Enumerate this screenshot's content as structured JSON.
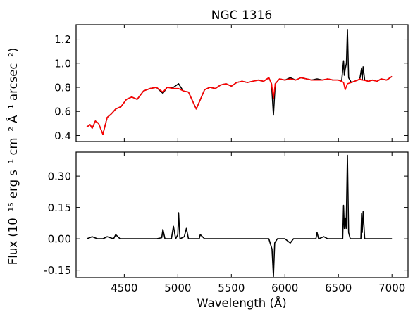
{
  "chart_data": [
    {
      "type": "line",
      "panel": "top",
      "title": "NGC 1316",
      "xlim": [
        4050,
        7150
      ],
      "ylim": [
        0.35,
        1.32
      ],
      "xticks": [
        4500,
        5000,
        5500,
        6000,
        6500,
        7000
      ],
      "yticks": [
        0.4,
        0.6,
        0.8,
        1.0,
        1.2
      ],
      "ytick_labels": [
        "0.4",
        "0.6",
        "0.8",
        "1.0",
        "1.2"
      ],
      "series": [
        {
          "color": "#000000",
          "role": "observed",
          "x": [
            4150,
            4180,
            4200,
            4230,
            4260,
            4300,
            4340,
            4380,
            4420,
            4470,
            4520,
            4570,
            4620,
            4680,
            4740,
            4800,
            4861,
            4900,
            4959,
            5007,
            5050,
            5100,
            5172,
            5250,
            5300,
            5350,
            5400,
            5450,
            5500,
            5550,
            5600,
            5650,
            5700,
            5750,
            5800,
            5850,
            5875,
            5893,
            5910,
            5950,
            6000,
            6050,
            6100,
            6150,
            6200,
            6250,
            6300,
            6350,
            6400,
            6450,
            6500,
            6530,
            6548,
            6555,
            6563,
            6575,
            6584,
            6595,
            6620,
            6650,
            6680,
            6700,
            6716,
            6722,
            6731,
            6745,
            6780,
            6820,
            6860,
            6900,
            6950,
            7000
          ],
          "y": [
            0.47,
            0.49,
            0.46,
            0.52,
            0.5,
            0.41,
            0.55,
            0.58,
            0.62,
            0.64,
            0.7,
            0.72,
            0.7,
            0.77,
            0.79,
            0.8,
            0.75,
            0.8,
            0.8,
            0.83,
            0.77,
            0.76,
            0.62,
            0.78,
            0.8,
            0.79,
            0.82,
            0.83,
            0.81,
            0.84,
            0.85,
            0.84,
            0.85,
            0.86,
            0.85,
            0.88,
            0.83,
            0.57,
            0.83,
            0.87,
            0.86,
            0.88,
            0.86,
            0.88,
            0.87,
            0.86,
            0.87,
            0.86,
            0.87,
            0.86,
            0.86,
            0.85,
            1.02,
            0.9,
            0.95,
            1.0,
            1.28,
            0.88,
            0.84,
            0.85,
            0.86,
            0.87,
            0.96,
            0.86,
            0.97,
            0.86,
            0.85,
            0.86,
            0.85,
            0.87,
            0.86,
            0.89
          ]
        },
        {
          "color": "#ff0000",
          "role": "model",
          "x": [
            4150,
            4180,
            4200,
            4230,
            4260,
            4300,
            4340,
            4380,
            4420,
            4470,
            4520,
            4570,
            4620,
            4680,
            4740,
            4800,
            4861,
            4900,
            4959,
            5007,
            5050,
            5100,
            5172,
            5250,
            5300,
            5350,
            5400,
            5450,
            5500,
            5550,
            5600,
            5650,
            5700,
            5750,
            5800,
            5850,
            5875,
            5893,
            5910,
            5950,
            6000,
            6050,
            6100,
            6150,
            6200,
            6250,
            6300,
            6350,
            6400,
            6450,
            6500,
            6530,
            6548,
            6563,
            6584,
            6620,
            6650,
            6680,
            6700,
            6716,
            6731,
            6780,
            6820,
            6860,
            6900,
            6950,
            7000
          ],
          "y": [
            0.47,
            0.49,
            0.46,
            0.52,
            0.5,
            0.41,
            0.55,
            0.58,
            0.62,
            0.64,
            0.7,
            0.72,
            0.7,
            0.77,
            0.79,
            0.8,
            0.76,
            0.8,
            0.79,
            0.79,
            0.77,
            0.76,
            0.62,
            0.78,
            0.8,
            0.79,
            0.82,
            0.83,
            0.81,
            0.84,
            0.85,
            0.84,
            0.85,
            0.86,
            0.85,
            0.88,
            0.83,
            0.71,
            0.83,
            0.87,
            0.86,
            0.87,
            0.86,
            0.88,
            0.87,
            0.86,
            0.86,
            0.86,
            0.87,
            0.86,
            0.86,
            0.85,
            0.84,
            0.78,
            0.83,
            0.84,
            0.85,
            0.86,
            0.87,
            0.86,
            0.86,
            0.85,
            0.86,
            0.85,
            0.87,
            0.86,
            0.89
          ]
        }
      ]
    },
    {
      "type": "line",
      "panel": "bottom",
      "xlabel": "Wavelength (Å)",
      "ylabel": "Flux (10⁻¹⁵ erg s⁻¹ cm⁻² Å⁻¹ arcsec⁻²)",
      "xlim": [
        4050,
        7150
      ],
      "ylim": [
        -0.185,
        0.415
      ],
      "xticks": [
        4500,
        5000,
        5500,
        6000,
        6500,
        7000
      ],
      "xtick_labels": [
        "4500",
        "5000",
        "5500",
        "6000",
        "6500",
        "7000"
      ],
      "yticks": [
        -0.15,
        0.0,
        0.15,
        0.3
      ],
      "ytick_labels": [
        "-0.15",
        "0.00",
        "0.15",
        "0.30"
      ],
      "series": [
        {
          "color": "#000000",
          "role": "residual",
          "x": [
            4150,
            4200,
            4250,
            4300,
            4340,
            4400,
            4420,
            4460,
            4520,
            4600,
            4700,
            4800,
            4850,
            4861,
            4880,
            4940,
            4959,
            4980,
            5000,
            5007,
            5020,
            5060,
            5080,
            5100,
            5150,
            5200,
            5210,
            5250,
            5300,
            5400,
            5500,
            5600,
            5700,
            5800,
            5850,
            5880,
            5893,
            5905,
            5930,
            6000,
            6050,
            6080,
            6150,
            6250,
            6290,
            6300,
            6315,
            6363,
            6400,
            6450,
            6500,
            6540,
            6548,
            6555,
            6563,
            6572,
            6584,
            6595,
            6610,
            6640,
            6680,
            6710,
            6716,
            6722,
            6731,
            6745,
            6800,
            6900,
            7000
          ],
          "y": [
            0.0,
            0.01,
            0.0,
            0.0,
            0.01,
            0.0,
            0.02,
            0.0,
            0.0,
            0.0,
            0.0,
            0.0,
            0.005,
            0.045,
            0.0,
            0.0,
            0.06,
            0.0,
            0.02,
            0.125,
            0.0,
            0.01,
            0.05,
            0.0,
            0.0,
            0.0,
            0.02,
            0.0,
            0.0,
            0.0,
            0.0,
            0.0,
            0.0,
            0.0,
            0.0,
            -0.05,
            -0.18,
            -0.02,
            0.0,
            0.0,
            -0.02,
            0.0,
            0.0,
            0.0,
            0.0,
            0.03,
            0.0,
            0.01,
            0.0,
            0.0,
            0.0,
            0.0,
            0.16,
            0.05,
            0.1,
            0.05,
            0.4,
            0.03,
            0.0,
            0.0,
            0.0,
            0.0,
            0.12,
            0.03,
            0.13,
            0.0,
            0.0,
            0.0,
            0.0
          ]
        }
      ]
    }
  ]
}
